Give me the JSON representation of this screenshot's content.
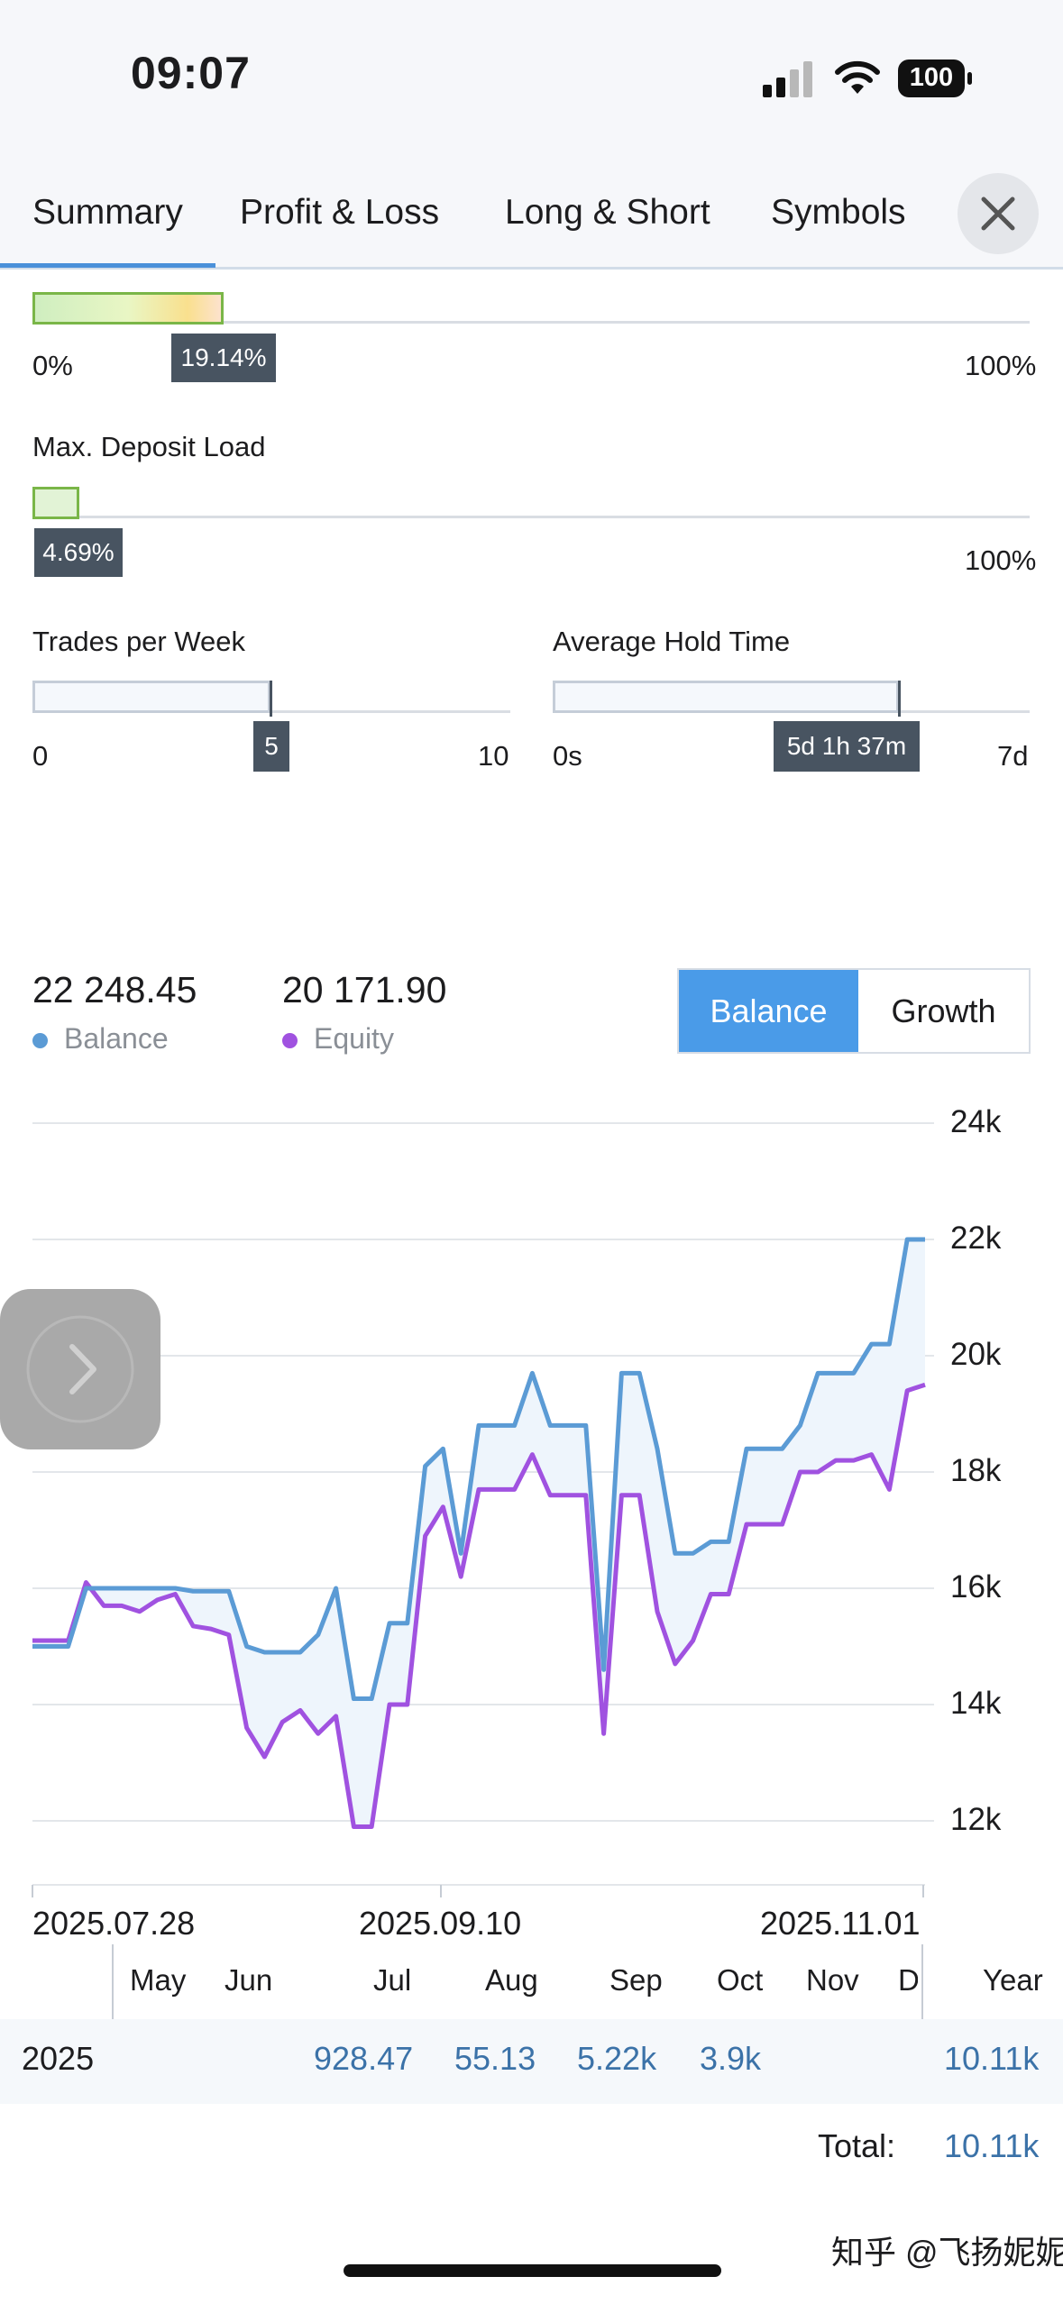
{
  "status_bar": {
    "time": "09:07",
    "battery": "100"
  },
  "tabs": [
    "Summary",
    "Profit & Loss",
    "Long & Short",
    "Symbols"
  ],
  "gauges": {
    "drawdown": {
      "min_label": "0%",
      "max_label": "100%",
      "value_label": "19.14%",
      "fraction": 0.1914
    },
    "deposit_load": {
      "title": "Max. Deposit Load",
      "max_label": "100%",
      "value_label": "4.69%",
      "fraction": 0.0469
    },
    "trades_per_week": {
      "title": "Trades per Week",
      "min_label": "0",
      "max_label": "10",
      "value_label": "5",
      "fraction": 0.5
    },
    "hold_time": {
      "title": "Average Hold Time",
      "min_label": "0s",
      "max_label": "7d",
      "value_label": "5d 1h 37m",
      "fraction": 0.72
    }
  },
  "summary": {
    "balance_value": "22 248.45",
    "balance_label": "Balance",
    "equity_value": "20 171.90",
    "equity_label": "Equity"
  },
  "toggle": {
    "selected": "Balance",
    "other": "Growth"
  },
  "colors": {
    "accent": "#4a90d9",
    "balance": "#5b9bd5",
    "equity": "#a052e0"
  },
  "chart_data": {
    "type": "line",
    "ylim": [
      11000,
      24000
    ],
    "y_ticks": [
      "24k",
      "22k",
      "20k",
      "18k",
      "16k",
      "14k",
      "12k"
    ],
    "x_ticks": [
      "2025.07.28",
      "2025.09.10",
      "2025.11.01"
    ],
    "series": [
      {
        "name": "Balance",
        "x": [
          0,
          4,
          6,
          8,
          10,
          12,
          14,
          16,
          18,
          20,
          22,
          24,
          26,
          28,
          30,
          32,
          34,
          36,
          38,
          40,
          42,
          44,
          46,
          48,
          50,
          52,
          54,
          56,
          58,
          60,
          62,
          64,
          66,
          68,
          70,
          72,
          74,
          76,
          78,
          80,
          82,
          84,
          86,
          88,
          90,
          92,
          94,
          96,
          98,
          100
        ],
        "values": [
          15000,
          15000,
          16000,
          16000,
          16000,
          16000,
          16000,
          16000,
          15950,
          15950,
          15950,
          15000,
          14900,
          14900,
          14900,
          15200,
          16000,
          14100,
          14100,
          15400,
          15400,
          18100,
          18400,
          16600,
          18800,
          18800,
          18800,
          19700,
          18800,
          18800,
          18800,
          14600,
          19700,
          19700,
          18400,
          16600,
          16600,
          16800,
          16800,
          18400,
          18400,
          18400,
          18800,
          19700,
          19700,
          19700,
          20200,
          20200,
          22000,
          22000
        ]
      },
      {
        "name": "Equity",
        "x": [
          0,
          4,
          6,
          8,
          10,
          12,
          14,
          16,
          18,
          20,
          22,
          24,
          26,
          28,
          30,
          32,
          34,
          36,
          38,
          40,
          42,
          44,
          46,
          48,
          50,
          52,
          54,
          56,
          58,
          60,
          62,
          64,
          66,
          68,
          70,
          72,
          74,
          76,
          78,
          80,
          82,
          84,
          86,
          88,
          90,
          92,
          94,
          96,
          98,
          100
        ],
        "values": [
          15100,
          15100,
          16100,
          15700,
          15700,
          15600,
          15800,
          15900,
          15350,
          15300,
          15200,
          13600,
          13100,
          13700,
          13900,
          13500,
          13800,
          11900,
          11900,
          14000,
          14000,
          16900,
          17400,
          16200,
          17700,
          17700,
          17700,
          18300,
          17600,
          17600,
          17600,
          13500,
          17600,
          17600,
          15600,
          14700,
          15100,
          15900,
          15900,
          17100,
          17100,
          17100,
          18000,
          18000,
          18200,
          18200,
          18300,
          17700,
          19400,
          19500
        ]
      }
    ]
  },
  "monthly_table": {
    "headers": [
      "May",
      "Jun",
      "Jul",
      "Aug",
      "Sep",
      "Oct",
      "Nov",
      "De",
      "Year"
    ],
    "row_year": "2025",
    "row_values": [
      "",
      "",
      "928.47",
      "55.13",
      "5.22k",
      "3.9k",
      "",
      "",
      "10.11k"
    ],
    "total_label": "Total:",
    "total_value": "10.11k"
  },
  "watermark": "知乎 @飞扬妮妮"
}
